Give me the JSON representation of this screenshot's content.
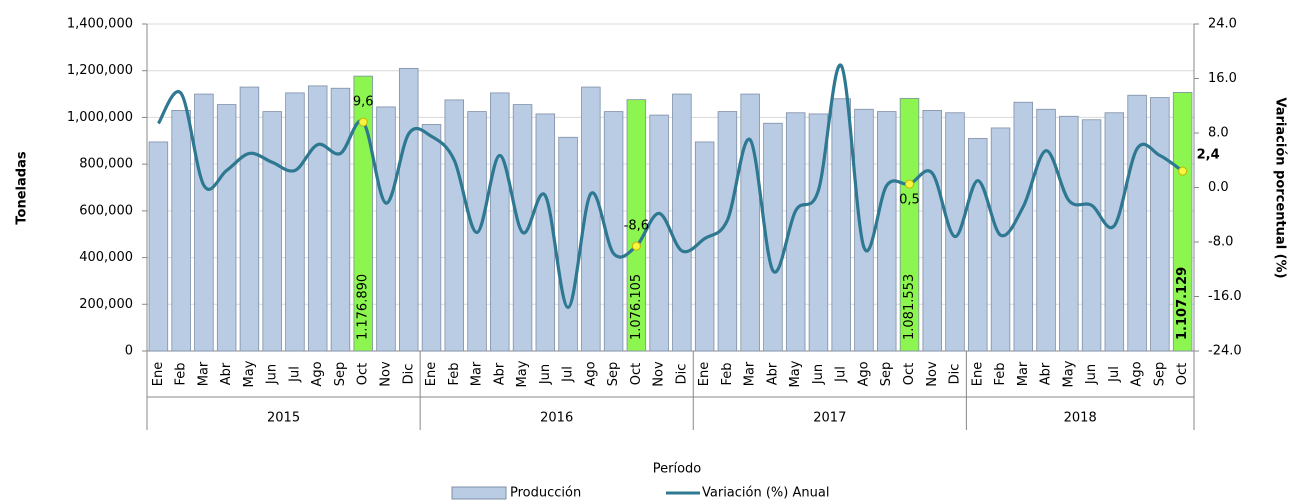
{
  "chart_data": {
    "type": "bar-line",
    "y_label": "Toneladas",
    "y2_label": "Variación porcentual (%)",
    "x_label": "Período",
    "groups": [
      {
        "name": "2015",
        "categories": [
          "Ene",
          "Feb",
          "Mar",
          "Abr",
          "May",
          "Jun",
          "Jul",
          "Ago",
          "Sep",
          "Oct",
          "Nov",
          "Dic"
        ]
      },
      {
        "name": "2016",
        "categories": [
          "Ene",
          "Feb",
          "Mar",
          "Abr",
          "May",
          "Jun",
          "Jul",
          "Ago",
          "Sep",
          "Oct",
          "Nov",
          "Dic"
        ]
      },
      {
        "name": "2017",
        "categories": [
          "Ene",
          "Feb",
          "Mar",
          "Abr",
          "May",
          "Jun",
          "Jul",
          "Ago",
          "Sep",
          "Oct",
          "Nov",
          "Dic"
        ]
      },
      {
        "name": "2018",
        "categories": [
          "Ene",
          "Feb",
          "Mar",
          "Abr",
          "May",
          "Jun",
          "Jul",
          "Ago",
          "Sep",
          "Oct"
        ]
      }
    ],
    "series": [
      {
        "name": "Producción",
        "type": "bar",
        "color": "#b9cce4",
        "highlight_color": "#8cf550",
        "values": [
          895000,
          1030000,
          1100000,
          1055000,
          1130000,
          1025000,
          1105000,
          1135000,
          1125000,
          1176890,
          1045000,
          1210000,
          970000,
          1075000,
          1025000,
          1105000,
          1055000,
          1015000,
          915000,
          1130000,
          1025000,
          1076105,
          1010000,
          1100000,
          895000,
          1025000,
          1100000,
          975000,
          1020000,
          1015000,
          1080000,
          1035000,
          1025000,
          1081553,
          1030000,
          1020000,
          910000,
          955000,
          1065000,
          1035000,
          1005000,
          990000,
          1020000,
          1095000,
          1085000,
          1107129
        ],
        "value_labels": [
          null,
          null,
          null,
          null,
          null,
          null,
          null,
          null,
          null,
          "1.176.890",
          null,
          null,
          null,
          null,
          null,
          null,
          null,
          null,
          null,
          null,
          null,
          "1.076.105",
          null,
          null,
          null,
          null,
          null,
          null,
          null,
          null,
          null,
          null,
          null,
          "1.081.553",
          null,
          null,
          null,
          null,
          null,
          null,
          null,
          null,
          null,
          null,
          null,
          "1.107.129"
        ]
      },
      {
        "name": "Variación (%) Anual",
        "type": "line",
        "axis": "y2",
        "color": "#2e7891",
        "marker_color": "#f5f542",
        "values": [
          9.4,
          13.8,
          0.3,
          2.5,
          5.0,
          3.7,
          2.5,
          6.3,
          5.0,
          9.6,
          -2.3,
          7.9,
          7.5,
          4.0,
          -6.6,
          4.7,
          -6.6,
          -1.2,
          -17.6,
          -0.9,
          -9.7,
          -8.6,
          -3.8,
          -9.3,
          -7.5,
          -4.8,
          7.0,
          -12.2,
          -3.4,
          -0.4,
          17.9,
          -8.8,
          0.3,
          0.5,
          2.1,
          -7.2,
          1.0,
          -7.0,
          -2.8,
          5.4,
          -1.9,
          -2.6,
          -5.6,
          5.7,
          4.7,
          2.4
        ],
        "value_labels": [
          null,
          null,
          null,
          null,
          null,
          null,
          null,
          null,
          null,
          "9,6",
          null,
          null,
          null,
          null,
          null,
          null,
          null,
          null,
          null,
          null,
          null,
          "-8,6",
          null,
          null,
          null,
          null,
          null,
          null,
          null,
          null,
          null,
          null,
          null,
          "0,5",
          null,
          null,
          null,
          null,
          null,
          null,
          null,
          null,
          null,
          null,
          null,
          "2,4"
        ]
      }
    ],
    "ylim": [
      0,
      1400000
    ],
    "yticks": [
      0,
      {
        "value": 200000,
        "label": "200,000"
      },
      {
        "value": 400000,
        "label": "400,000"
      },
      {
        "value": 600000,
        "label": "600,000"
      },
      {
        "value": 800000,
        "label": "800,000"
      },
      {
        "value": 1000000,
        "label": "1,000,000"
      },
      {
        "value": 1200000,
        "label": "1,200,000"
      },
      {
        "value": 1400000,
        "label": "1,400,000"
      }
    ],
    "y2lim": [
      -24,
      24
    ],
    "y2ticks": [
      {
        "value": -24,
        "label": "-24.0"
      },
      {
        "value": -16,
        "label": "-16.0"
      },
      {
        "value": -8,
        "label": "-8.0"
      },
      {
        "value": 0,
        "label": "0.0"
      },
      {
        "value": 8,
        "label": "8.0"
      },
      {
        "value": 16,
        "label": "16.0"
      },
      {
        "value": 24,
        "label": "24.0"
      }
    ],
    "grid": true,
    "legend": "bottom"
  }
}
